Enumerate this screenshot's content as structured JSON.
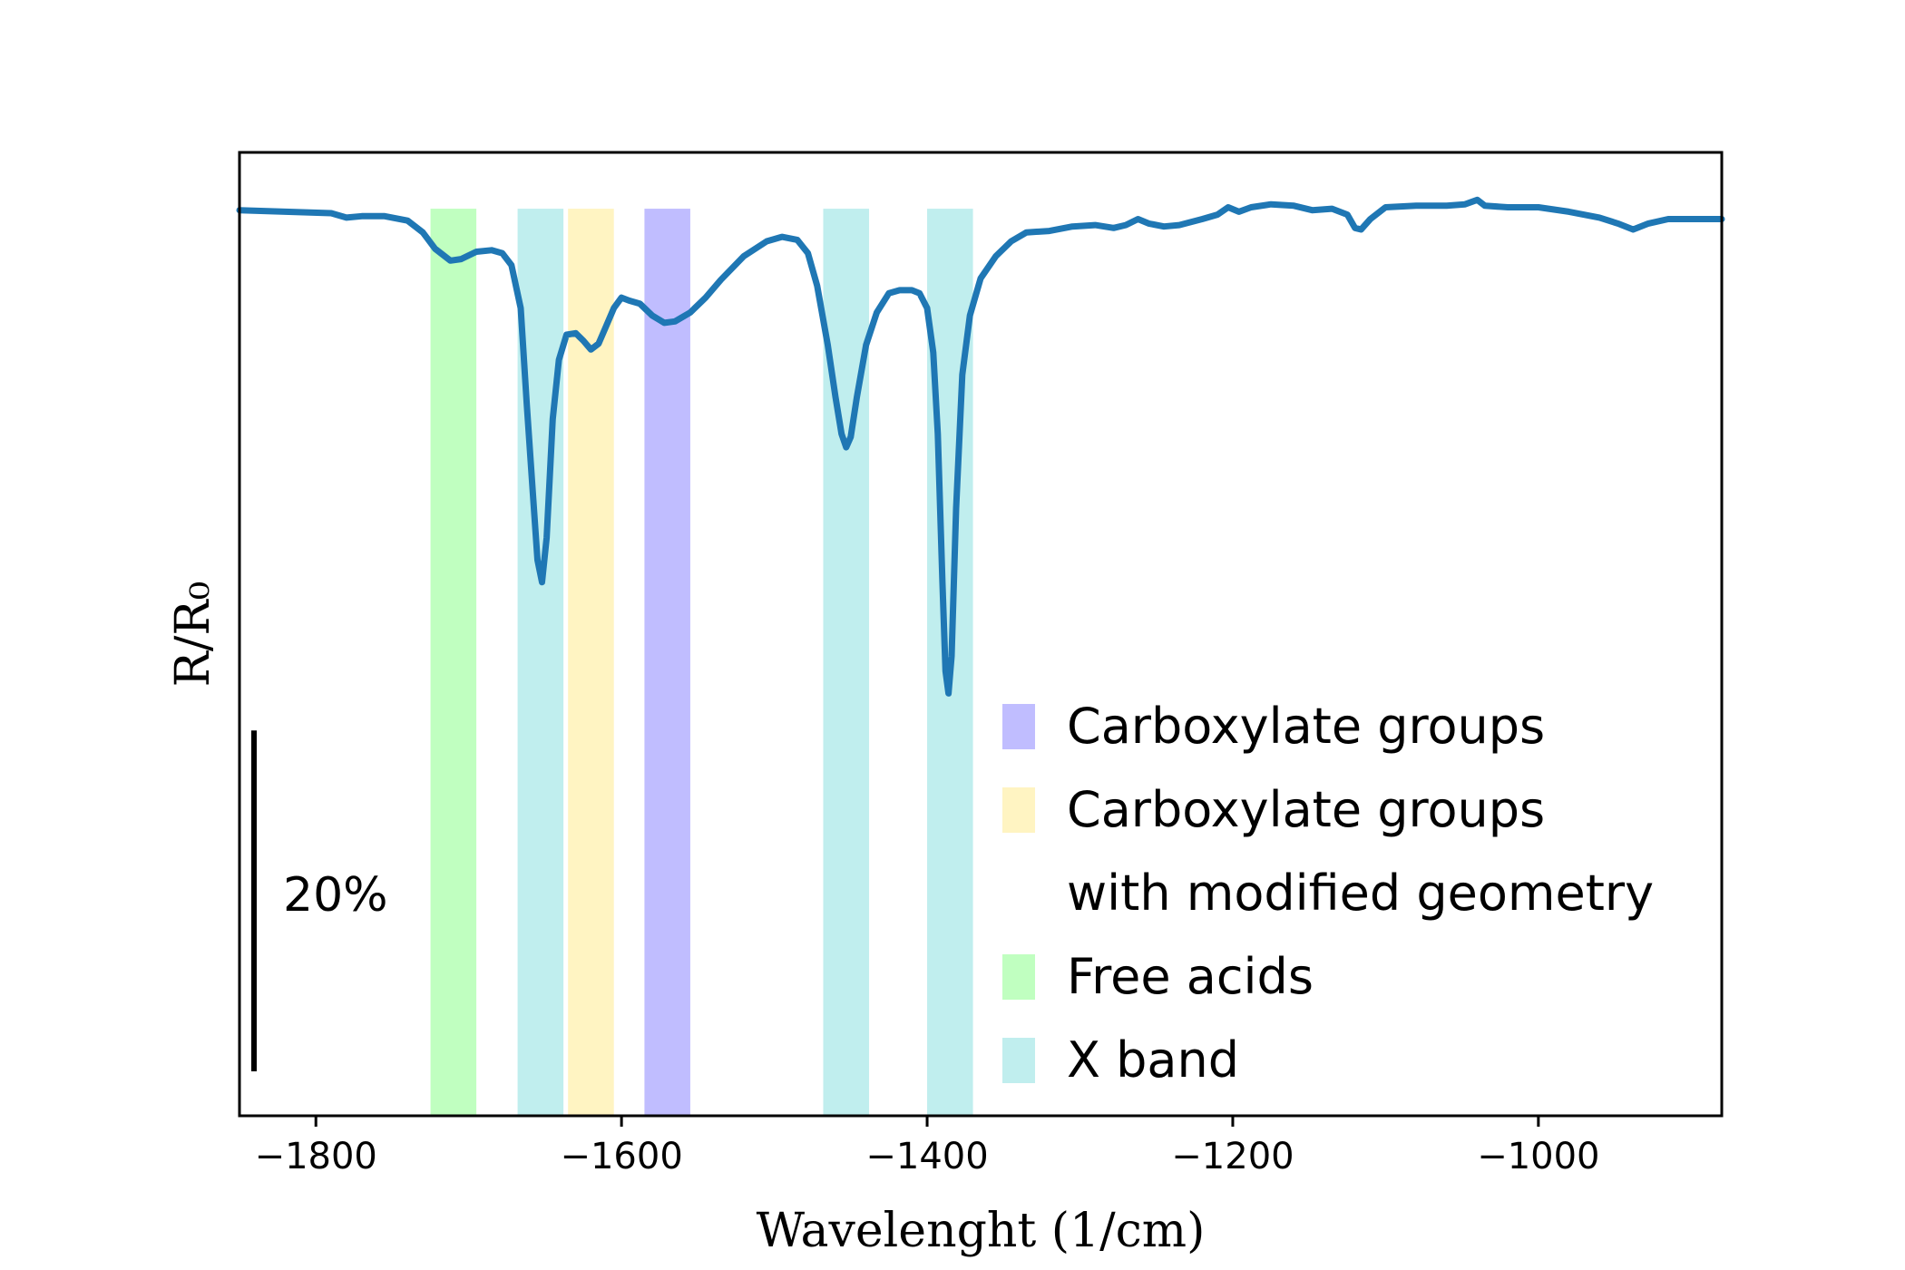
{
  "chart_data": {
    "type": "line",
    "xlabel": "Wavelenght (1/cm)",
    "ylabel": "R/R₀",
    "xlim": [
      -1850,
      -880
    ],
    "ylim": [
      0.42,
      1.07
    ],
    "x_ticks": [
      -1800,
      -1600,
      -1400,
      -1200,
      -1000
    ],
    "x_tick_labels": [
      "−1800",
      "−1600",
      "−1400",
      "−1200",
      "−1000"
    ],
    "y_ticks_shown": false,
    "grid": false,
    "scale_bar": {
      "label": "20%",
      "from": 0.45,
      "to": 0.68
    },
    "bands": [
      {
        "category": "Free acids",
        "from": -1725,
        "to": -1695
      },
      {
        "category": "X band",
        "from": -1668,
        "to": -1638
      },
      {
        "category": "Carboxylate groups with modified geometry",
        "from": -1635,
        "to": -1605
      },
      {
        "category": "Carboxylate groups",
        "from": -1585,
        "to": -1555
      },
      {
        "category": "X band",
        "from": -1468,
        "to": -1438
      },
      {
        "category": "X band",
        "from": -1400,
        "to": -1370
      }
    ],
    "legend": {
      "placement": "lower-right",
      "entries": [
        {
          "label_lines": [
            "Carboxylate groups"
          ],
          "color": "#c0bdff"
        },
        {
          "label_lines": [
            "Carboxylate groups",
            "with modified geometry"
          ],
          "color": "#fff4c2"
        },
        {
          "label_lines": [
            "Free acids"
          ],
          "color": "#c0ffc0"
        },
        {
          "label_lines": [
            "X band"
          ],
          "color": "#c0eeee"
        }
      ]
    },
    "series": [
      {
        "color": "#1f77b4",
        "points": [
          [
            -1850,
            1.031
          ],
          [
            -1820,
            1.03
          ],
          [
            -1790,
            1.029
          ],
          [
            -1780,
            1.026
          ],
          [
            -1770,
            1.027
          ],
          [
            -1755,
            1.027
          ],
          [
            -1740,
            1.024
          ],
          [
            -1730,
            1.016
          ],
          [
            -1722,
            1.005
          ],
          [
            -1712,
            0.997
          ],
          [
            -1705,
            0.998
          ],
          [
            -1695,
            1.003
          ],
          [
            -1685,
            1.004
          ],
          [
            -1678,
            1.002
          ],
          [
            -1672,
            0.994
          ],
          [
            -1666,
            0.965
          ],
          [
            -1662,
            0.9
          ],
          [
            -1658,
            0.84
          ],
          [
            -1655,
            0.795
          ],
          [
            -1652,
            0.78
          ],
          [
            -1649,
            0.81
          ],
          [
            -1645,
            0.89
          ],
          [
            -1641,
            0.93
          ],
          [
            -1636,
            0.947
          ],
          [
            -1630,
            0.948
          ],
          [
            -1625,
            0.943
          ],
          [
            -1620,
            0.937
          ],
          [
            -1615,
            0.941
          ],
          [
            -1610,
            0.953
          ],
          [
            -1605,
            0.965
          ],
          [
            -1600,
            0.972
          ],
          [
            -1595,
            0.97
          ],
          [
            -1588,
            0.968
          ],
          [
            -1580,
            0.96
          ],
          [
            -1572,
            0.955
          ],
          [
            -1565,
            0.956
          ],
          [
            -1555,
            0.962
          ],
          [
            -1545,
            0.972
          ],
          [
            -1535,
            0.984
          ],
          [
            -1520,
            1.0
          ],
          [
            -1505,
            1.01
          ],
          [
            -1495,
            1.013
          ],
          [
            -1485,
            1.011
          ],
          [
            -1478,
            1.002
          ],
          [
            -1472,
            0.98
          ],
          [
            -1465,
            0.94
          ],
          [
            -1460,
            0.905
          ],
          [
            -1456,
            0.88
          ],
          [
            -1453,
            0.871
          ],
          [
            -1450,
            0.878
          ],
          [
            -1446,
            0.905
          ],
          [
            -1440,
            0.94
          ],
          [
            -1433,
            0.962
          ],
          [
            -1425,
            0.975
          ],
          [
            -1418,
            0.977
          ],
          [
            -1410,
            0.977
          ],
          [
            -1405,
            0.975
          ],
          [
            -1400,
            0.965
          ],
          [
            -1396,
            0.935
          ],
          [
            -1393,
            0.88
          ],
          [
            -1390,
            0.78
          ],
          [
            -1388,
            0.72
          ],
          [
            -1386,
            0.705
          ],
          [
            -1384,
            0.73
          ],
          [
            -1381,
            0.83
          ],
          [
            -1377,
            0.92
          ],
          [
            -1372,
            0.96
          ],
          [
            -1365,
            0.985
          ],
          [
            -1355,
            1.0
          ],
          [
            -1345,
            1.01
          ],
          [
            -1335,
            1.016
          ],
          [
            -1320,
            1.017
          ],
          [
            -1305,
            1.02
          ],
          [
            -1290,
            1.021
          ],
          [
            -1278,
            1.019
          ],
          [
            -1270,
            1.021
          ],
          [
            -1262,
            1.025
          ],
          [
            -1255,
            1.022
          ],
          [
            -1245,
            1.02
          ],
          [
            -1235,
            1.021
          ],
          [
            -1220,
            1.025
          ],
          [
            -1210,
            1.028
          ],
          [
            -1203,
            1.033
          ],
          [
            -1196,
            1.03
          ],
          [
            -1188,
            1.033
          ],
          [
            -1175,
            1.035
          ],
          [
            -1160,
            1.034
          ],
          [
            -1148,
            1.031
          ],
          [
            -1135,
            1.032
          ],
          [
            -1125,
            1.028
          ],
          [
            -1120,
            1.019
          ],
          [
            -1116,
            1.018
          ],
          [
            -1110,
            1.025
          ],
          [
            -1100,
            1.033
          ],
          [
            -1080,
            1.034
          ],
          [
            -1060,
            1.034
          ],
          [
            -1048,
            1.035
          ],
          [
            -1040,
            1.038
          ],
          [
            -1035,
            1.034
          ],
          [
            -1020,
            1.033
          ],
          [
            -1000,
            1.033
          ],
          [
            -980,
            1.03
          ],
          [
            -960,
            1.026
          ],
          [
            -948,
            1.022
          ],
          [
            -938,
            1.018
          ],
          [
            -928,
            1.022
          ],
          [
            -915,
            1.025
          ],
          [
            -900,
            1.025
          ],
          [
            -880,
            1.025
          ]
        ]
      }
    ]
  }
}
